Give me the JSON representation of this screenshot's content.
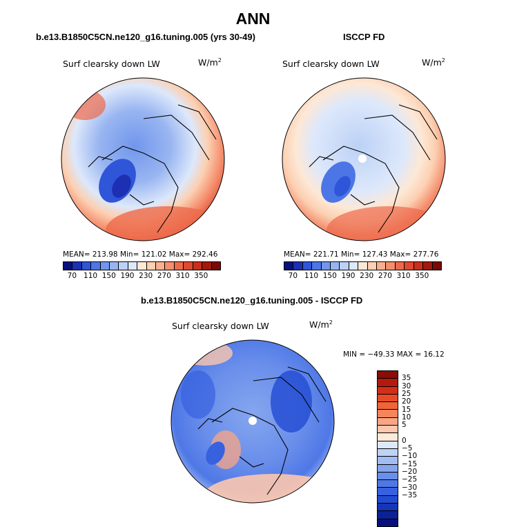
{
  "title": "ANN",
  "panels": [
    {
      "name": "model",
      "title": "b.e13.B1850C5CN.ne120_g16.tuning.005 (yrs 30-49)",
      "variable": "Surf clearsky down LW",
      "units": "W/m",
      "units_exp": "2",
      "stats": "MEAN= 213.98  Min= 121.02  Max= 292.46"
    },
    {
      "name": "obs",
      "title": "ISCCP FD",
      "variable": "Surf clearsky down LW",
      "units": "W/m",
      "units_exp": "2",
      "stats": "MEAN= 221.71  Min= 127.43  Max= 277.76"
    },
    {
      "name": "diff",
      "title": "b.e13.B1850C5CN.ne120_g16.tuning.005 - ISCCP FD",
      "variable": "Surf clearsky down LW",
      "units": "W/m",
      "units_exp": "2",
      "stats": "MIN = −49.33  MAX =  16.12"
    }
  ],
  "colorbar_abs": {
    "ticks": [
      "70",
      "110",
      "150",
      "190",
      "230",
      "270",
      "310",
      "350"
    ],
    "colors": [
      "#08117a",
      "#1d2fb2",
      "#2f55d9",
      "#4c76e5",
      "#7196ec",
      "#98b5f1",
      "#bcd1f6",
      "#dde8fb",
      "#fde8d6",
      "#fcd0b2",
      "#f9b08f",
      "#f48e6d",
      "#ec6a4b",
      "#e04830",
      "#c8301c",
      "#a11a0d",
      "#7a0a05"
    ]
  },
  "colorbar_diff": {
    "ticks": [
      "35",
      "30",
      "25",
      "20",
      "15",
      "10",
      "5",
      "0",
      "−5",
      "−10",
      "−15",
      "−20",
      "−25",
      "−30",
      "−35"
    ],
    "colors": [
      "#8c0c06",
      "#b5190e",
      "#d62d18",
      "#e84a28",
      "#f06537",
      "#f5855a",
      "#f9a586",
      "#fcc7ae",
      "#feead8",
      "#dce8fb",
      "#bed3f6",
      "#a1bdf2",
      "#85a6ee",
      "#6a8feb",
      "#4f78e6",
      "#3761df",
      "#224bd3",
      "#1535b8",
      "#0b2196",
      "#06127a"
    ]
  }
}
